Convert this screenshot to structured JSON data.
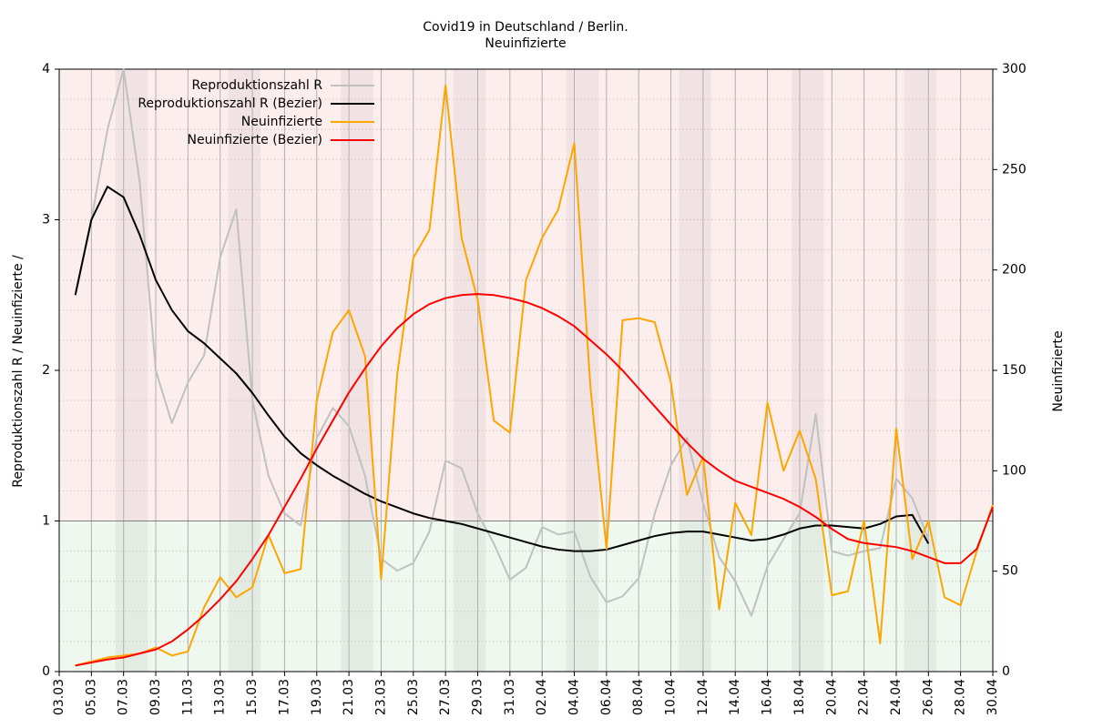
{
  "chart_data": {
    "type": "line",
    "title": "Covid19 in Deutschland / Berlin.",
    "subtitle": "Neuinfizierte",
    "ylabel": "Reproduktionszahl R / Neuinfizierte /",
    "y2label": "Neuinfizierte",
    "categories": [
      "03.03",
      null,
      "05.03",
      null,
      "07.03",
      null,
      "09.03",
      null,
      "11.03",
      null,
      "13.03",
      null,
      "15.03",
      null,
      "17.03",
      null,
      "19.03",
      null,
      "21.03",
      null,
      "23.03",
      null,
      "25.03",
      null,
      "27.03",
      null,
      "29.03",
      null,
      "31.03",
      null,
      "02.04",
      null,
      "04.04",
      null,
      "06.04",
      null,
      "08.04",
      null,
      "10.04",
      null,
      "12.04",
      null,
      "14.04",
      null,
      "16.04",
      null,
      "18.04",
      null,
      "20.04",
      null,
      "22.04",
      null,
      "24.04",
      null,
      "26.04",
      null,
      "28.04",
      null,
      "30.04"
    ],
    "ylim": [
      0,
      4
    ],
    "yticks": [
      0,
      1,
      2,
      3,
      4
    ],
    "y2lim": [
      0,
      300
    ],
    "y2ticks": [
      0,
      50,
      100,
      150,
      200,
      250,
      300
    ],
    "threshold": 1,
    "grid": true,
    "legend": "upper left",
    "series": [
      {
        "name": "Reproduktionszahl R",
        "color": "#c0c0c0",
        "values": [
          null,
          2.5,
          3.0,
          3.6,
          4.0,
          3.25,
          2.0,
          1.65,
          1.92,
          2.1,
          2.75,
          3.07,
          1.8,
          1.3,
          1.05,
          0.97,
          1.55,
          1.75,
          1.63,
          1.3,
          0.75,
          0.67,
          0.72,
          0.93,
          1.4,
          1.35,
          1.05,
          0.85,
          0.61,
          0.69,
          0.96,
          0.91,
          0.93,
          0.63,
          0.46,
          0.5,
          0.62,
          1.05,
          1.37,
          1.55,
          1.12,
          0.76,
          0.6,
          0.37,
          0.7,
          0.88,
          1.05,
          1.71,
          0.8,
          0.77,
          0.8,
          0.82,
          1.28,
          1.15,
          0.88,
          null,
          null,
          null,
          null
        ]
      },
      {
        "name": "Reproduktionszahl R (Bezier)",
        "color": "#000000",
        "values": [
          null,
          2.5,
          3.0,
          3.22,
          3.15,
          2.9,
          2.6,
          2.4,
          2.26,
          2.18,
          2.08,
          1.98,
          1.85,
          1.7,
          1.56,
          1.45,
          1.37,
          1.3,
          1.24,
          1.18,
          1.13,
          1.09,
          1.05,
          1.02,
          1.0,
          0.98,
          0.95,
          0.92,
          0.89,
          0.86,
          0.83,
          0.81,
          0.8,
          0.8,
          0.81,
          0.84,
          0.87,
          0.9,
          0.92,
          0.93,
          0.93,
          0.91,
          0.89,
          0.87,
          0.88,
          0.91,
          0.95,
          0.97,
          0.97,
          0.96,
          0.95,
          0.98,
          1.03,
          1.04,
          0.85,
          null,
          null,
          null,
          null
        ]
      },
      {
        "name": "Neuinfizierte",
        "color": "#ffa500",
        "axis": "y2",
        "values": [
          null,
          3,
          5,
          7,
          8,
          9,
          12,
          8,
          10,
          32,
          47,
          37,
          42,
          68,
          49,
          51,
          135,
          169,
          180,
          157,
          46,
          148,
          206,
          220,
          292,
          216,
          185,
          125,
          119,
          195,
          216,
          230,
          263,
          142,
          61,
          175,
          176,
          174,
          144,
          88,
          107,
          31,
          84,
          68,
          134,
          100,
          120,
          96,
          38,
          40,
          75,
          14,
          121,
          56,
          75,
          37,
          33,
          60,
          83
        ]
      },
      {
        "name": "Neuinfizierte (Bezier)",
        "color": "#ff0000",
        "axis": "y2",
        "values": [
          null,
          3,
          4.5,
          6,
          7,
          9,
          11,
          15,
          21,
          28,
          36,
          45,
          56,
          68,
          82,
          96,
          111,
          125,
          139,
          151,
          162,
          171,
          178,
          183,
          186,
          187.5,
          188,
          187.5,
          186,
          184,
          181,
          177,
          172,
          165,
          158,
          150,
          141,
          132,
          123,
          114,
          106,
          100,
          95,
          92,
          89,
          86,
          82,
          77,
          71,
          66,
          64,
          63,
          62,
          60,
          57,
          54,
          54,
          61,
          82
        ]
      }
    ]
  }
}
